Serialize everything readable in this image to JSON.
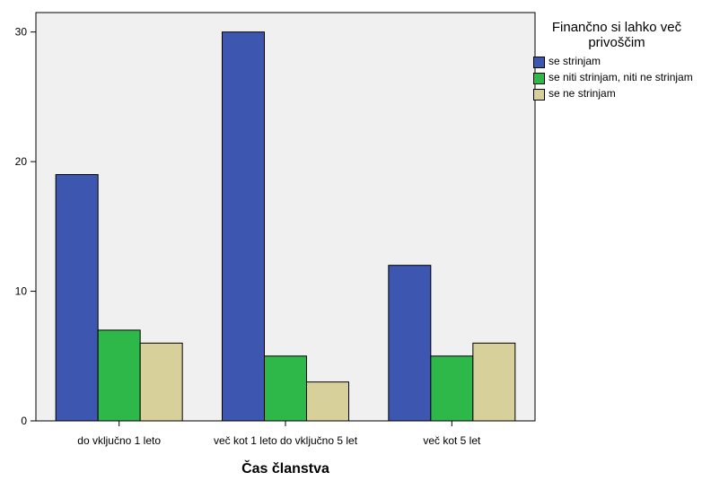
{
  "chart_data": {
    "type": "bar",
    "categories": [
      "do vključno 1 leto",
      "več kot 1 leto do vključno 5 let",
      "več kot 5 let"
    ],
    "series": [
      {
        "name": "se strinjam",
        "values": [
          19,
          30,
          12
        ],
        "color": "#3d56b0"
      },
      {
        "name": "se niti strinjam, niti ne strinjam",
        "values": [
          7,
          5,
          5
        ],
        "color": "#2fb84a"
      },
      {
        "name": "se ne strinjam",
        "values": [
          6,
          3,
          6
        ],
        "color": "#d8d09b"
      }
    ],
    "legend_title": "Finančno si lahko več privoščim",
    "xlabel": "Čas članstva",
    "ylabel": "",
    "ylim": [
      0,
      31.5
    ],
    "yticks": [
      0,
      10,
      20,
      30
    ],
    "legend_position": "right",
    "plot_background": "#f0f0f0"
  }
}
